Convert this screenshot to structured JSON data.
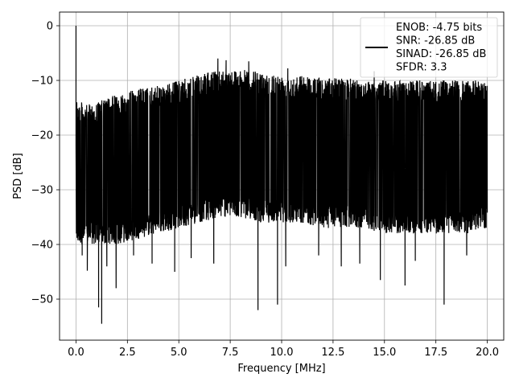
{
  "chart_data": {
    "type": "line",
    "xlabel": "Frequency [MHz]",
    "ylabel": "PSD [dB]",
    "xlim": [
      -0.8,
      20.8
    ],
    "ylim": [
      -57.5,
      2.5
    ],
    "xticks": [
      0.0,
      2.5,
      5.0,
      7.5,
      10.0,
      12.5,
      15.0,
      17.5,
      20.0
    ],
    "xtick_labels": [
      "0.0",
      "2.5",
      "5.0",
      "7.5",
      "10.0",
      "12.5",
      "15.0",
      "17.5",
      "20.0"
    ],
    "yticks": [
      0,
      -10,
      -20,
      -30,
      -40,
      -50
    ],
    "ytick_labels": [
      "0",
      "−10",
      "−20",
      "−30",
      "−40",
      "−50"
    ],
    "grid": true,
    "legend_position": "top-right",
    "series": [
      {
        "color": "#000000",
        "envelope": {
          "x": [
            0.0,
            0.1,
            0.5,
            1.0,
            2.0,
            3.0,
            4.0,
            5.0,
            6.0,
            7.0,
            8.0,
            9.0,
            10.0,
            11.0,
            12.0,
            13.0,
            14.0,
            15.0,
            16.0,
            17.0,
            18.0,
            19.0,
            20.0
          ],
          "upper": [
            -6.5,
            -13.5,
            -14.5,
            -14.0,
            -12.5,
            -11.5,
            -11.0,
            -10.0,
            -9.0,
            -8.0,
            -8.0,
            -8.5,
            -9.0,
            -9.0,
            -9.5,
            -9.5,
            -10.0,
            -10.0,
            -10.0,
            -10.0,
            -10.0,
            -10.0,
            -10.0
          ],
          "lower": [
            -40.0,
            -40.0,
            -40.0,
            -40.0,
            -40.0,
            -39.0,
            -38.0,
            -37.0,
            -36.0,
            -35.0,
            -35.0,
            -36.0,
            -36.0,
            -36.0,
            -37.0,
            -37.0,
            -37.0,
            -38.0,
            -38.0,
            -38.0,
            -38.0,
            -38.0,
            -37.0
          ]
        },
        "peaks": [
          {
            "x": 0.0,
            "y": 0.0
          },
          {
            "x": 0.02,
            "y": -22.0
          },
          {
            "x": 6.9,
            "y": -6.0
          },
          {
            "x": 7.3,
            "y": -6.3
          },
          {
            "x": 8.4,
            "y": -6.5
          },
          {
            "x": 10.3,
            "y": -7.8
          },
          {
            "x": 14.5,
            "y": -8.3
          }
        ],
        "dips": [
          {
            "x": 0.3,
            "y": -42.0
          },
          {
            "x": 0.55,
            "y": -44.8
          },
          {
            "x": 1.1,
            "y": -51.5
          },
          {
            "x": 1.25,
            "y": -54.5
          },
          {
            "x": 1.5,
            "y": -44.0
          },
          {
            "x": 1.95,
            "y": -48.0
          },
          {
            "x": 2.8,
            "y": -42.0
          },
          {
            "x": 3.7,
            "y": -43.5
          },
          {
            "x": 4.8,
            "y": -45.0
          },
          {
            "x": 5.6,
            "y": -42.5
          },
          {
            "x": 6.7,
            "y": -43.5
          },
          {
            "x": 8.85,
            "y": -52.0
          },
          {
            "x": 9.8,
            "y": -51.0
          },
          {
            "x": 10.2,
            "y": -44.0
          },
          {
            "x": 11.8,
            "y": -42.0
          },
          {
            "x": 12.9,
            "y": -44.0
          },
          {
            "x": 13.8,
            "y": -43.5
          },
          {
            "x": 14.8,
            "y": -46.5
          },
          {
            "x": 16.0,
            "y": -47.5
          },
          {
            "x": 16.5,
            "y": -43.0
          },
          {
            "x": 17.9,
            "y": -51.0
          },
          {
            "x": 19.0,
            "y": -42.0
          }
        ]
      }
    ],
    "legend": [
      "ENOB: -4.75 bits",
      "SNR: -26.85 dB",
      "SINAD: -26.85 dB",
      "SFDR: 3.3"
    ]
  }
}
